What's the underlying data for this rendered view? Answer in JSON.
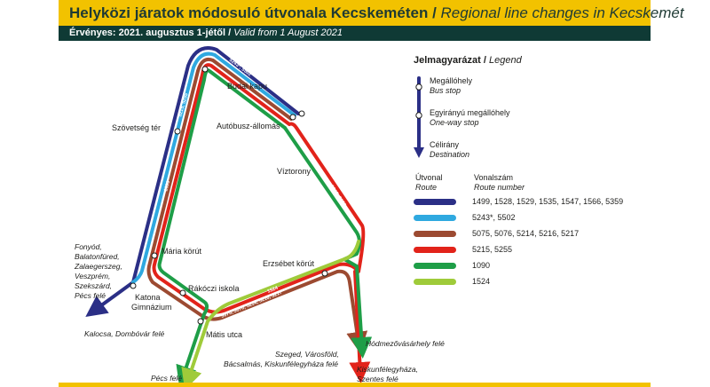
{
  "header": {
    "title_hu": "Helyközi járatok módosuló útvonala Kecskeméten",
    "title_sep": " / ",
    "title_en": "Regional line changes in Kecskemét",
    "valid_hu": "Érvényes: 2021. augusztus 1-jétől",
    "valid_sep": " / ",
    "valid_en": "Valid from 1 August 2021"
  },
  "colors": {
    "dark_blue": "#2b2f86",
    "light_blue": "#2fa9e0",
    "brown": "#9c4a31",
    "red": "#e2231a",
    "green": "#1e9e47",
    "light_green": "#9fcb3a",
    "accent_yellow": "#f2c200"
  },
  "legend": {
    "title_hu": "Jelmagyarázat",
    "title_sep": " / ",
    "title_en": "Legend",
    "bus_stop_hu": "Megállóhely",
    "bus_stop_en": "Bus stop",
    "oneway_hu": "Egyirányú megállóhely",
    "oneway_en": "One-way stop",
    "dest_hu": "Célirány",
    "dest_en": "Destination",
    "route_hu": "Útvonal",
    "route_en": "Route",
    "number_hu": "Vonalszám",
    "number_en": "Route number",
    "routes": [
      {
        "color": "#2b2f86",
        "numbers": "1499, 1528, 1529, 1535, 1547, 1566, 5359"
      },
      {
        "color": "#2fa9e0",
        "numbers": "5243*, 5502"
      },
      {
        "color": "#9c4a31",
        "numbers": "5075, 5076, 5214, 5216, 5217"
      },
      {
        "color": "#e2231a",
        "numbers": "5215, 5255"
      },
      {
        "color": "#1e9e47",
        "numbers": "1090"
      },
      {
        "color": "#9fcb3a",
        "numbers": "1524"
      }
    ]
  },
  "stops": {
    "budai_kapu": "Budai kapu",
    "szovetseg_ter": "Szövetség tér",
    "autobusz_allomas": "Autóbusz-állomás",
    "viztorony": "Víztorony",
    "maria_korut": "Mária körút",
    "erzsebet_korut": "Erzsébet körút",
    "rakoczi_iskola": "Rákóczi iskola",
    "katona_1": "Katona",
    "katona_2": "Gimnázium",
    "matis_utca": "Mátis utca"
  },
  "destinations": {
    "west": [
      "Fonyód,",
      "Balatonfüred,",
      "Zalaegerszeg,",
      "Veszprém,",
      "Szekszárd,",
      "Pécs felé"
    ],
    "kalocsa": "Kalocsa, Dombóvár felé",
    "pecs": "Pécs felé",
    "hodmezo": "Hódmezővásárhely felé",
    "szeged": [
      "Szeged, Városföld,",
      "Bácsalmás, Kiskunfélegyháza felé"
    ],
    "kiskun": [
      "Kiskunfélegyháza,",
      "Szentes felé"
    ]
  },
  "line_labels": {
    "blue_west": "1499, 1528, 1529, 1535, 1547, 1566, 5359",
    "lightblue_top": "5243*, 5502",
    "red_top": "5215, 5255",
    "green_west": "1090",
    "red_east": "5215, 5255",
    "brown_south": "5075, 5076, 5214, 5216, 5217",
    "lightgreen_south": "1524"
  }
}
